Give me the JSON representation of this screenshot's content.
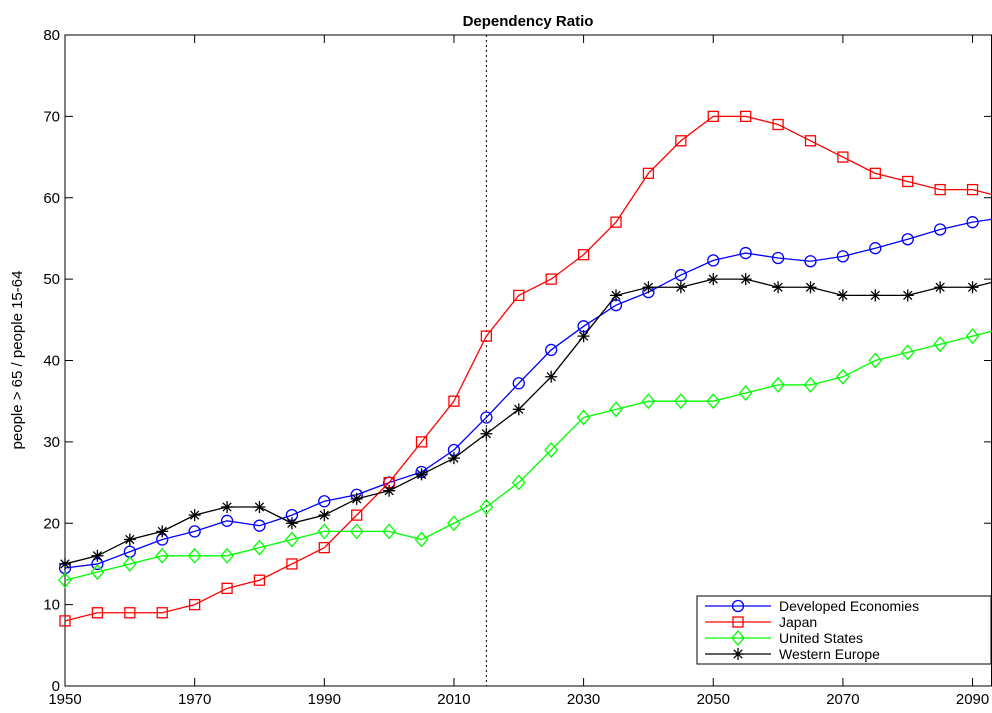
{
  "chart_data": {
    "type": "line",
    "title": "Dependency Ratio",
    "y_label": "people > 65 / people 15-64",
    "x": [
      1950,
      1955,
      1960,
      1965,
      1970,
      1975,
      1980,
      1985,
      1990,
      1995,
      2000,
      2005,
      2010,
      2015,
      2020,
      2025,
      2030,
      2035,
      2040,
      2045,
      2050,
      2055,
      2060,
      2065,
      2070,
      2075,
      2080,
      2085,
      2090,
      2095
    ],
    "series": [
      {
        "name": "Developed Economies",
        "color": "#0000ff",
        "marker": "circle",
        "values": [
          14.5,
          15,
          16.5,
          18,
          19,
          20.3,
          19.7,
          21,
          22.7,
          23.5,
          25,
          26.3,
          29,
          33,
          37.2,
          41.3,
          44.2,
          46.8,
          48.4,
          50.5,
          52.3,
          53.2,
          52.6,
          52.2,
          52.8,
          53.8,
          54.9,
          56.1,
          57,
          57.6
        ]
      },
      {
        "name": "Japan",
        "color": "#ff0000",
        "marker": "square",
        "values": [
          8,
          9,
          9,
          9,
          10,
          12,
          13,
          15,
          17,
          21,
          25,
          30,
          35,
          43,
          48,
          50,
          53,
          57,
          63,
          67,
          70,
          70,
          69,
          67,
          65,
          63,
          62,
          61,
          61,
          60
        ]
      },
      {
        "name": "United States",
        "color": "#00ff00",
        "marker": "diamond",
        "values": [
          13,
          14,
          15,
          16,
          16,
          16,
          17,
          18,
          19,
          19,
          19,
          18,
          20,
          22,
          25,
          29,
          33,
          34,
          35,
          35,
          35,
          36,
          37,
          37,
          38,
          40,
          41,
          42,
          43,
          44
        ]
      },
      {
        "name": "Western Europe",
        "color": "#000000",
        "marker": "star",
        "values": [
          15,
          16,
          18,
          19,
          21,
          22,
          22,
          20,
          21,
          23,
          24,
          26,
          28,
          31,
          34,
          38,
          43,
          48,
          49,
          49,
          50,
          50,
          49,
          49,
          48,
          48,
          48,
          49,
          49,
          50
        ]
      }
    ],
    "vline": 2015,
    "xlim": [
      1950,
      2093
    ],
    "ylim": [
      0,
      80
    ],
    "xticks": [
      1950,
      1970,
      1990,
      2010,
      2030,
      2050,
      2070,
      2090
    ],
    "yticks": [
      0,
      10,
      20,
      30,
      40,
      50,
      60,
      70,
      80
    ],
    "legend": "lower right"
  }
}
